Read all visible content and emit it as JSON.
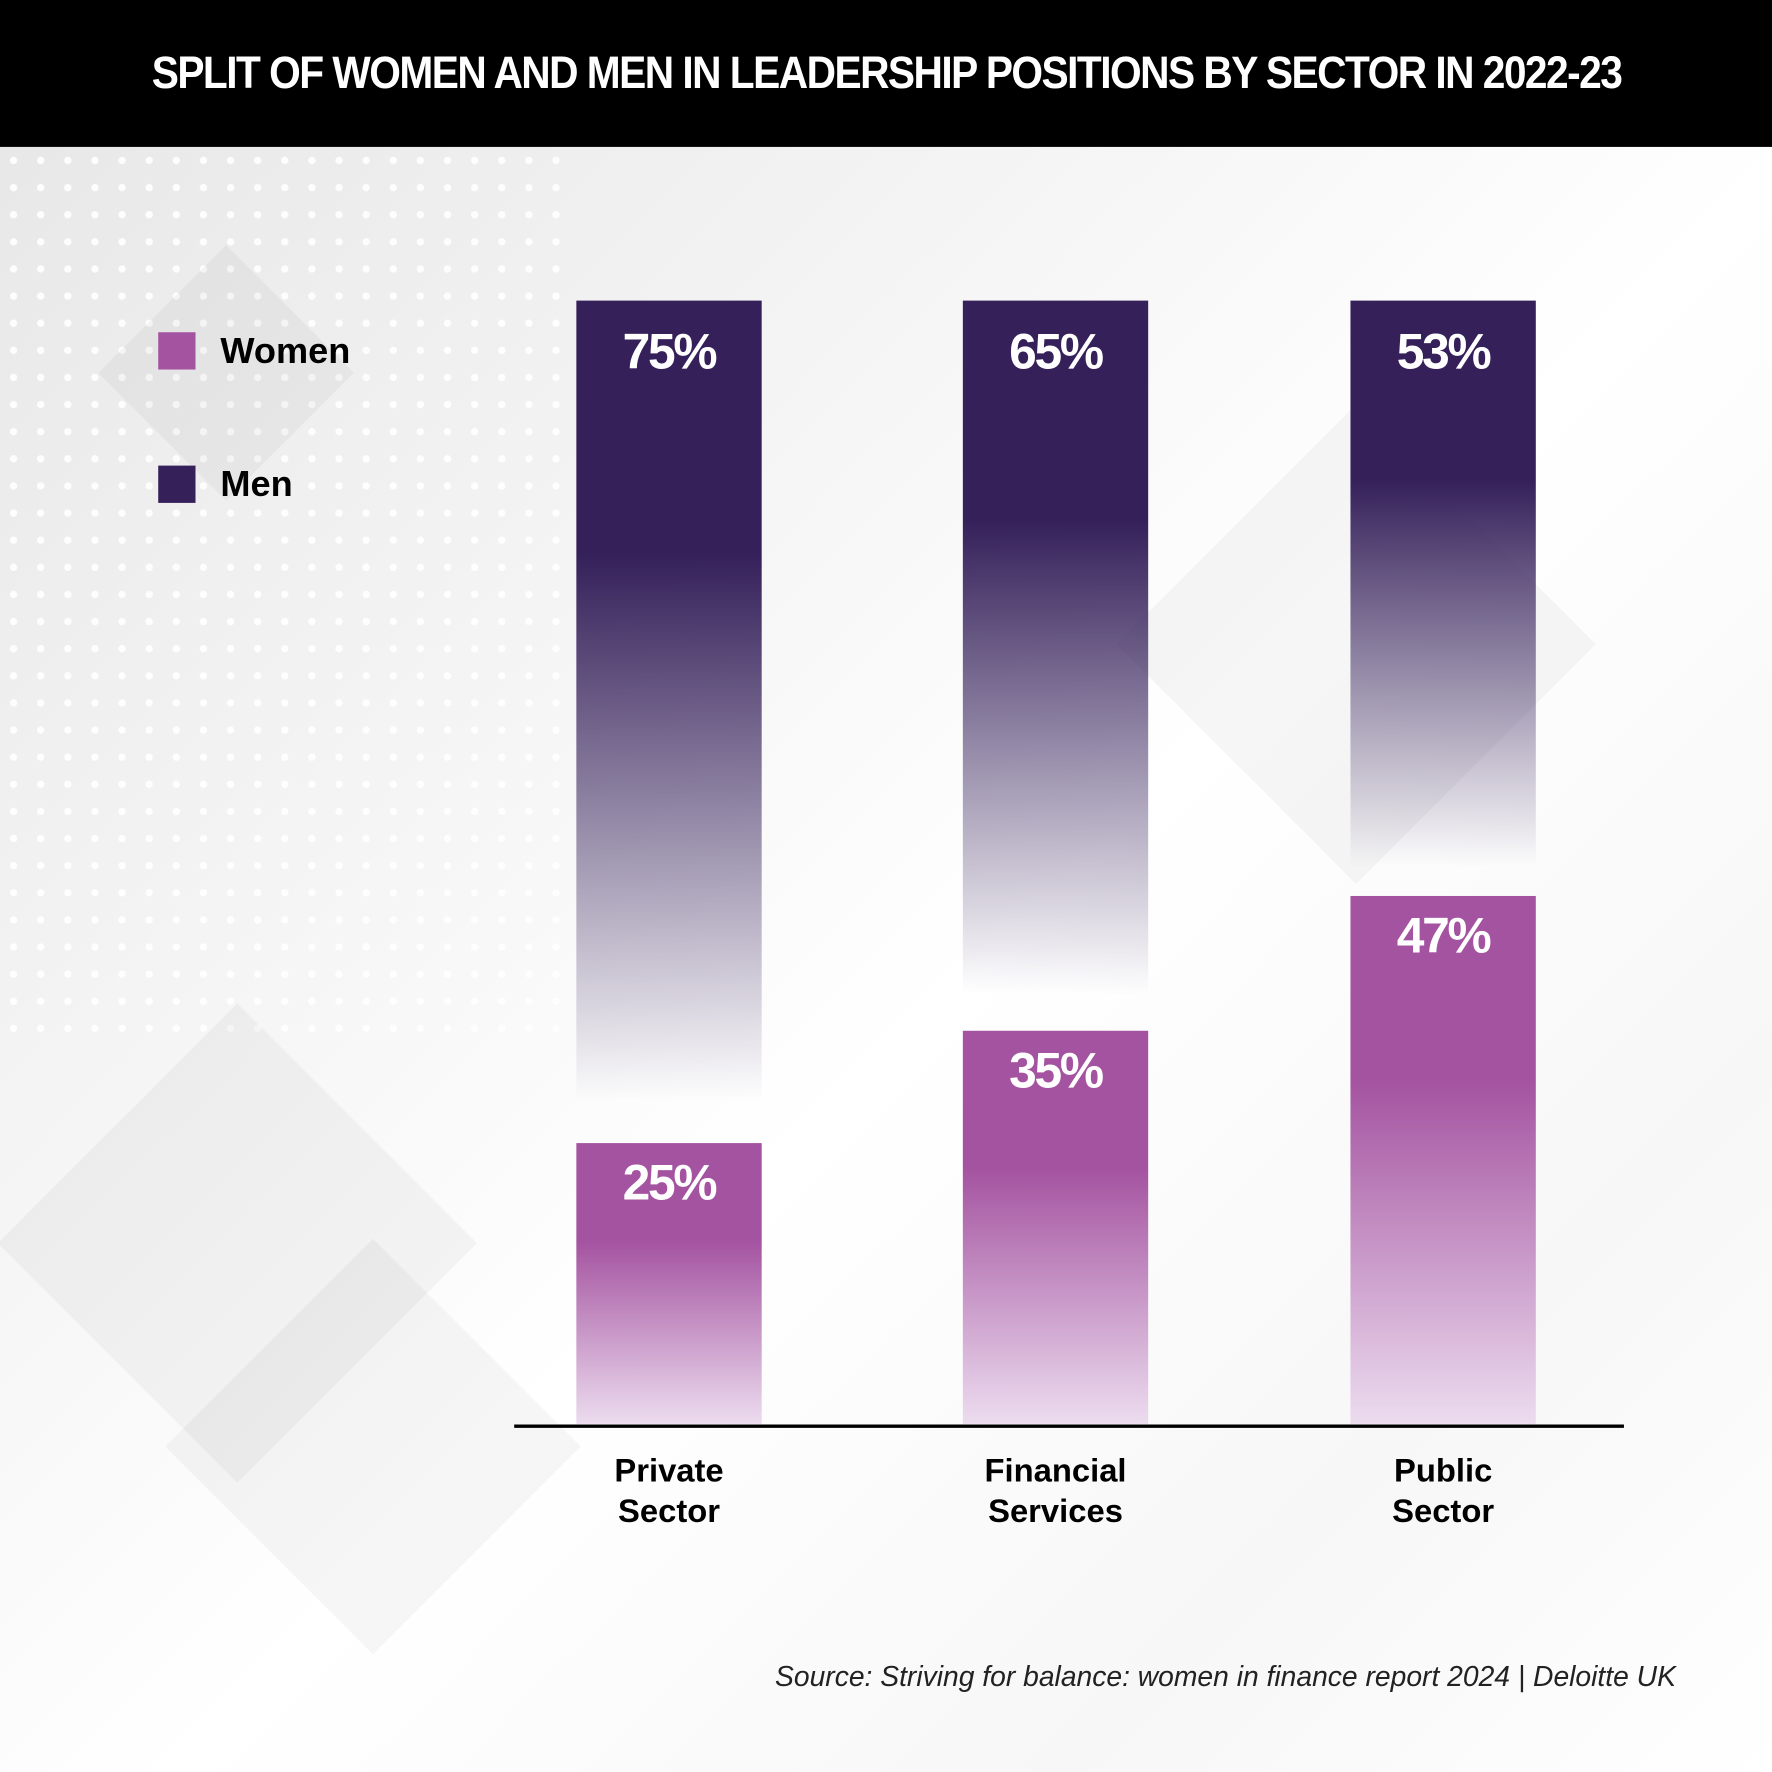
{
  "title": "SPLIT OF WOMEN AND MEN IN LEADERSHIP POSITIONS BY SECTOR IN 2022-23",
  "source": "Source: Striving for balance: women in finance report 2024 | Deloitte UK",
  "colors": {
    "women": "#a453a0",
    "women_light": "#ecdcef",
    "men": "#35205a",
    "header_bg": "#000000"
  },
  "chart_data": {
    "type": "bar",
    "stacked": true,
    "title": "SPLIT OF WOMEN AND MEN IN LEADERSHIP POSITIONS BY SECTOR IN 2022-23",
    "categories": [
      [
        "Private",
        "Sector"
      ],
      [
        "Financial",
        "Services"
      ],
      [
        "Public",
        "Sector"
      ]
    ],
    "series": [
      {
        "name": "Women",
        "values": [
          25,
          35,
          47
        ],
        "labels": [
          "25%",
          "35%",
          "47%"
        ]
      },
      {
        "name": "Men",
        "values": [
          75,
          65,
          53
        ],
        "labels": [
          "75%",
          "65%",
          "53%"
        ]
      }
    ],
    "ylim": [
      0,
      100
    ],
    "grid": false,
    "legend": "top-left"
  }
}
